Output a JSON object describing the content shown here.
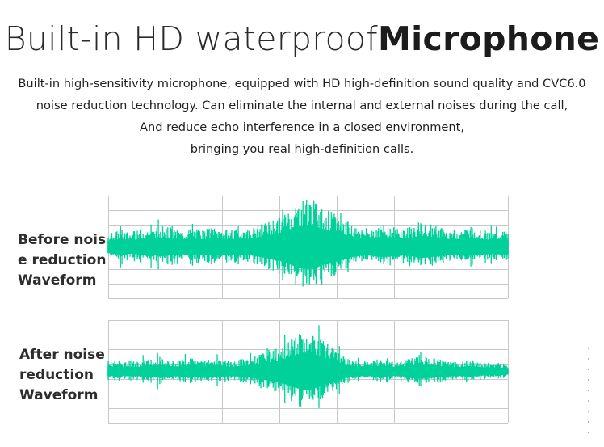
{
  "headline": {
    "light": "Built-in HD waterproof",
    "bold": "Microphone"
  },
  "description": [
    "Built-in high-sensitivity microphone, equipped with HD high-definition sound quality and CVC6.0",
    "noise reduction technology. Can eliminate the internal and external noises during the call,",
    "And reduce echo interference in a closed environment,",
    "bringing you real high-definition calls."
  ],
  "waveforms": [
    {
      "label_lines": [
        "Before nois",
        "e reduction",
        "Waveform"
      ],
      "envelope": [
        0.28,
        0.32,
        0.35,
        0.3,
        0.33,
        0.38,
        0.36,
        0.42,
        0.4,
        0.35,
        0.33,
        0.38,
        0.36,
        0.34,
        0.4,
        0.37,
        0.35,
        0.33,
        0.38,
        0.36,
        0.42,
        0.48,
        0.55,
        0.62,
        0.7,
        0.85,
        0.95,
        1.0,
        0.92,
        0.8,
        0.72,
        0.65,
        0.55,
        0.45,
        0.4,
        0.38,
        0.42,
        0.45,
        0.44,
        0.4,
        0.38,
        0.42,
        0.5,
        0.48,
        0.44,
        0.4,
        0.36,
        0.34,
        0.38,
        0.4,
        0.36,
        0.33,
        0.3,
        0.34,
        0.3
      ]
    },
    {
      "label_lines": [
        "After noise",
        "reduction",
        "Waveform"
      ],
      "envelope": [
        0.2,
        0.22,
        0.18,
        0.22,
        0.2,
        0.26,
        0.24,
        0.3,
        0.25,
        0.22,
        0.24,
        0.28,
        0.24,
        0.22,
        0.26,
        0.24,
        0.22,
        0.2,
        0.25,
        0.26,
        0.32,
        0.38,
        0.42,
        0.5,
        0.58,
        0.7,
        0.8,
        0.85,
        0.75,
        0.62,
        0.52,
        0.42,
        0.3,
        0.25,
        0.22,
        0.2,
        0.24,
        0.26,
        0.22,
        0.2,
        0.22,
        0.3,
        0.34,
        0.32,
        0.28,
        0.24,
        0.22,
        0.2,
        0.22,
        0.24,
        0.2,
        0.18,
        0.16,
        0.18,
        0.14
      ]
    }
  ],
  "colors": {
    "wave": "#00d19a",
    "grid": "#c8c8c8"
  }
}
